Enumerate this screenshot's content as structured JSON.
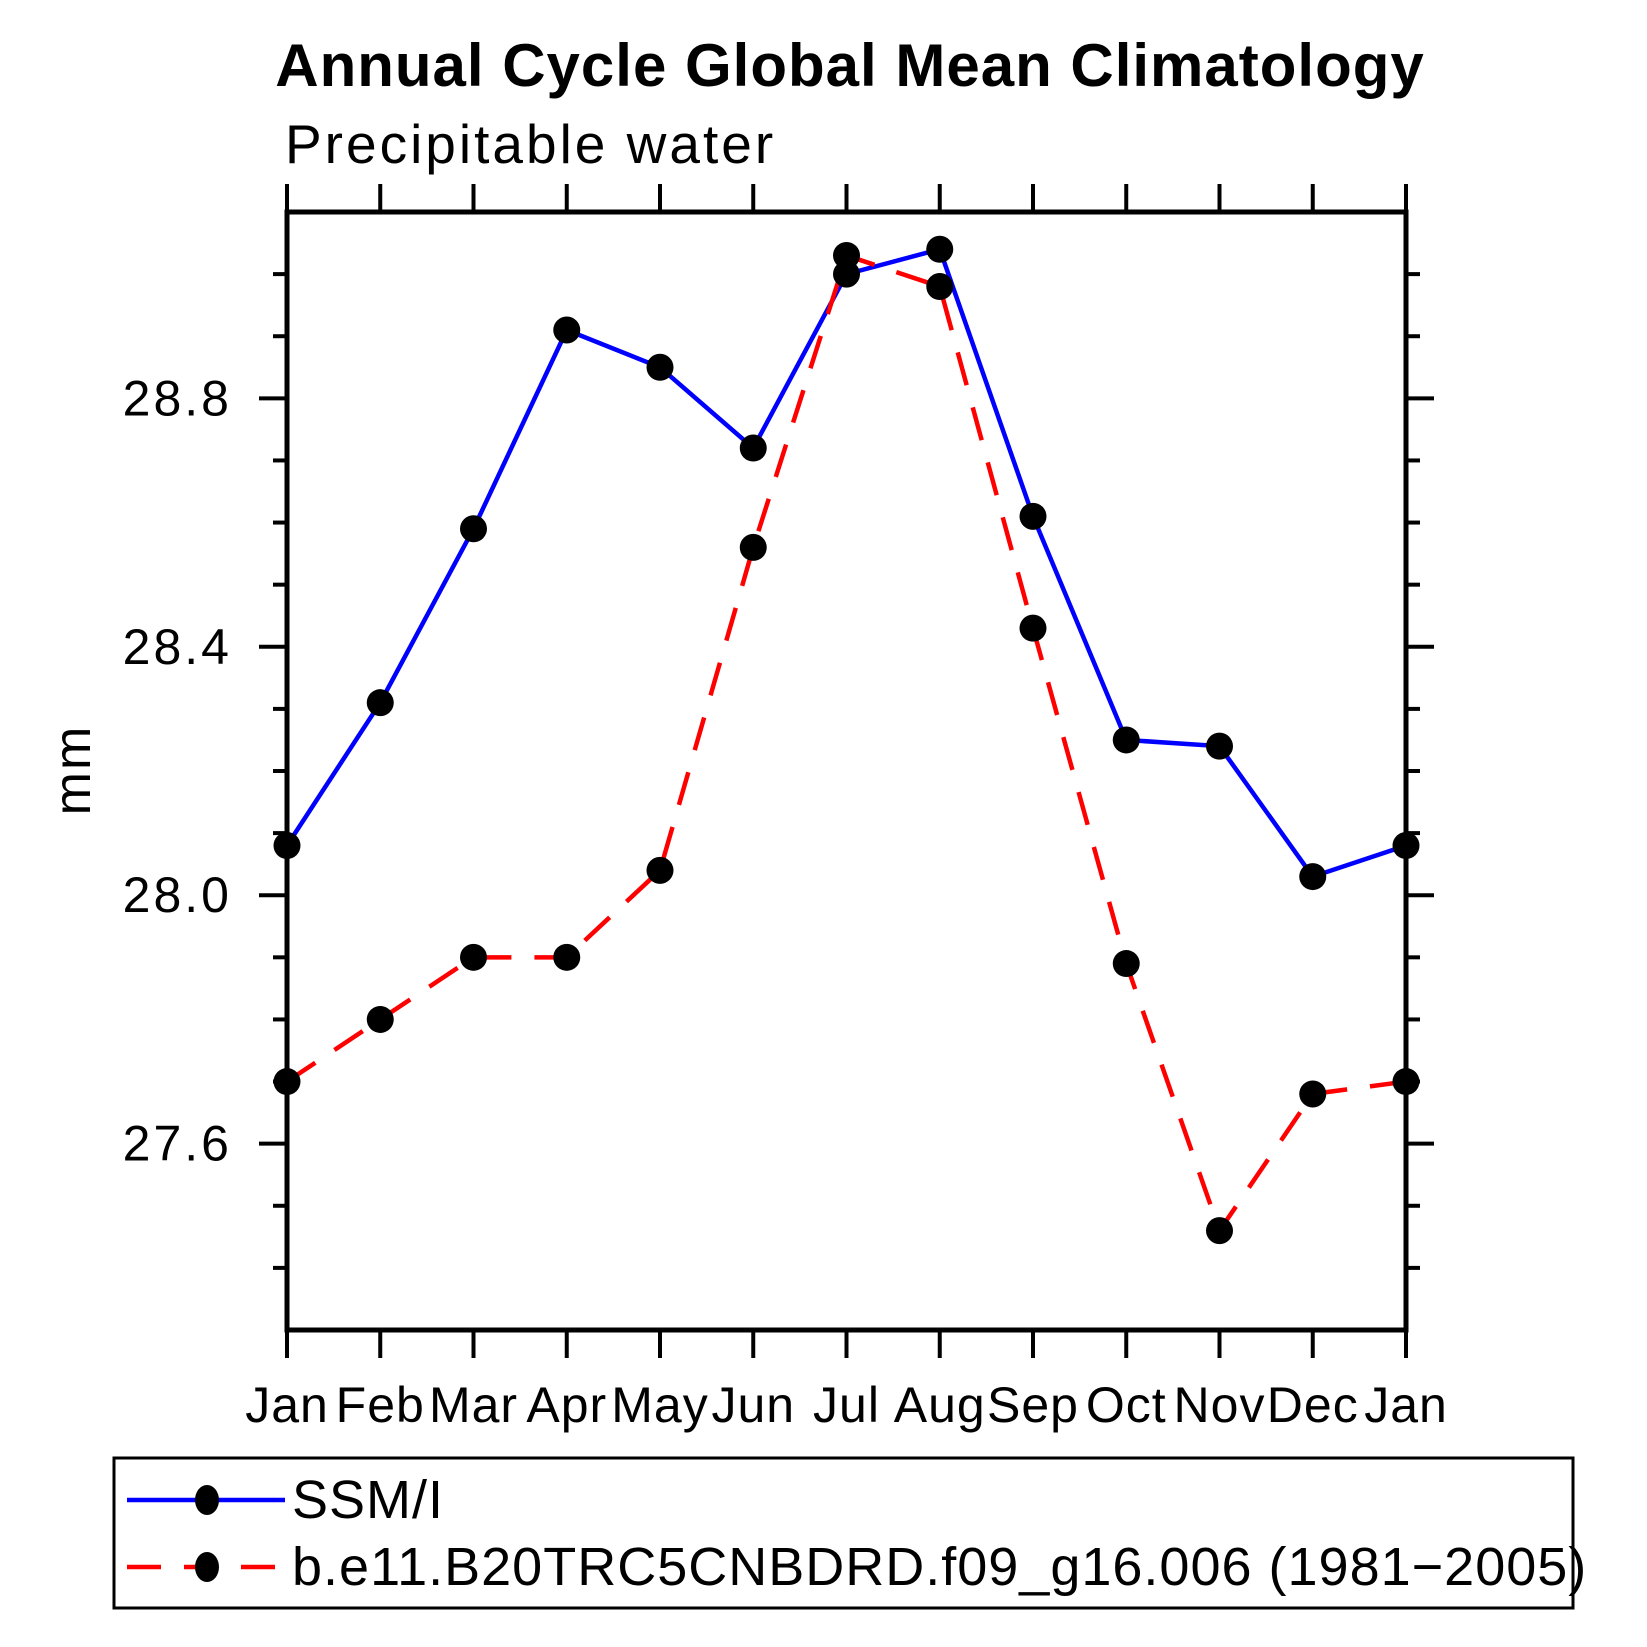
{
  "header": {
    "title": "Annual Cycle Global Mean Climatology"
  },
  "chart_data": {
    "type": "line",
    "title": "Annual Cycle Global Mean Climatology",
    "subtitle": "Precipitable water",
    "xlabel": "",
    "ylabel": "mm",
    "x_categories": [
      "Jan",
      "Feb",
      "Mar",
      "Apr",
      "May",
      "Jun",
      "Jul",
      "Aug",
      "Sep",
      "Oct",
      "Nov",
      "Dec",
      "Jan"
    ],
    "ylim": [
      27.3,
      29.1
    ],
    "ytick_major": [
      27.6,
      28.0,
      28.4,
      28.8
    ],
    "ytick_minor_step": 0.1,
    "grid": false,
    "legend_position": "bottom-left-box",
    "series": [
      {
        "name": "SSM/I",
        "color": "#0000ff",
        "style": "solid",
        "marker": "circle",
        "marker_color": "#000000",
        "values": [
          28.08,
          28.31,
          28.59,
          28.91,
          28.85,
          28.72,
          29.0,
          29.04,
          28.61,
          28.25,
          28.24,
          28.03,
          28.08
        ]
      },
      {
        "name": "b.e11.B20TRC5CNBDRD.f09_g16.006 (1981−2005)",
        "color": "#ff0000",
        "style": "dashed",
        "marker": "circle",
        "marker_color": "#000000",
        "values": [
          27.7,
          27.8,
          27.9,
          27.9,
          28.04,
          28.56,
          29.03,
          28.98,
          28.43,
          27.89,
          27.46,
          27.68,
          27.7
        ]
      }
    ]
  }
}
